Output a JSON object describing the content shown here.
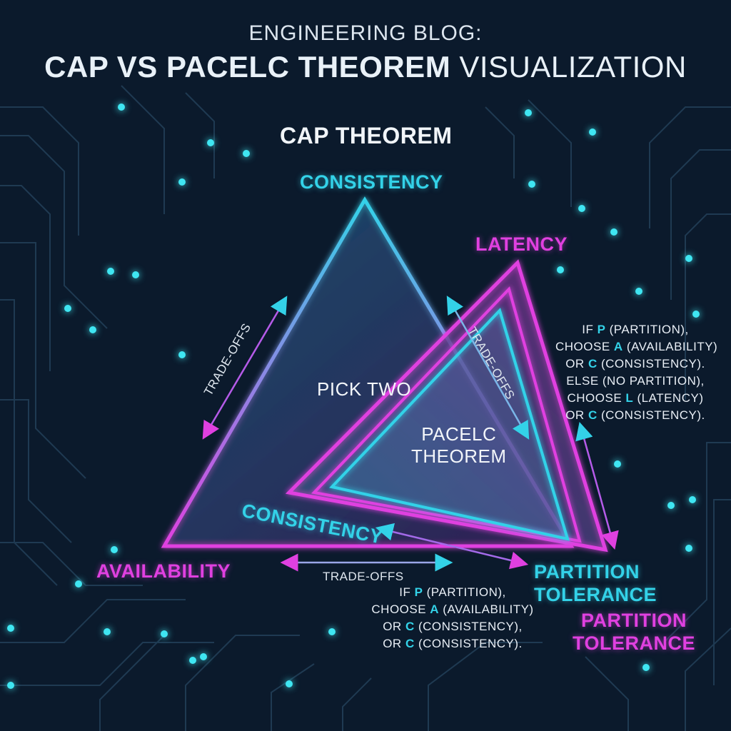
{
  "title": {
    "prefix": "ENGINEERING BLOG:",
    "bold": "CAP VS PACELC THEOREM",
    "rest": "VISUALIZATION"
  },
  "cap": {
    "title": "CAP THEOREM",
    "consistency": "CONSISTENCY",
    "availability": "AVAILABILITY",
    "partition_tolerance": [
      "PARTITION",
      "TOLERANCE"
    ],
    "center": "PICK TWO"
  },
  "pacelc": {
    "center": [
      "PACELC",
      "THEOREM"
    ],
    "latency": "LATENCY",
    "consistency": "CONSISTENCY",
    "partition_tolerance": [
      "PARTITION",
      "TOLERANCE"
    ]
  },
  "tradeoffs": {
    "left": "TRADE-OFFS",
    "right": "TRADE-OFFS",
    "bottom": "TRADE-OFFS"
  },
  "note_right": [
    {
      "pre": "IF ",
      "hl": "P",
      "post": " (PARTITION),"
    },
    {
      "pre": "CHOOSE ",
      "hl": "A",
      "post": " (AVAILABILITY)"
    },
    {
      "pre": "OR ",
      "hl": "C",
      "post": " (CONSISTENCY)."
    },
    {
      "pre": "ELSE (NO PARTITION),",
      "hl": "",
      "post": ""
    },
    {
      "pre": "CHOOSE ",
      "hl": "L",
      "post": " (LATENCY)"
    },
    {
      "pre": "OR ",
      "hl": "C",
      "post": " (CONSISTENCY)."
    }
  ],
  "note_bottom": [
    {
      "pre": "IF ",
      "hl": "P",
      "post": " (PARTITION),"
    },
    {
      "pre": "CHOOSE ",
      "hl": "A",
      "post": " (AVAILABILITY)"
    },
    {
      "pre": "OR ",
      "hl": "C",
      "post": " (CONSISTENCY),"
    },
    {
      "pre": "OR ",
      "hl": "C",
      "post": " (CONSISTENCY)."
    }
  ],
  "colors": {
    "background": "#0b1a2c",
    "cyan": "#33d2e8",
    "magenta": "#e040e0",
    "circuit": "#1f3a52"
  }
}
